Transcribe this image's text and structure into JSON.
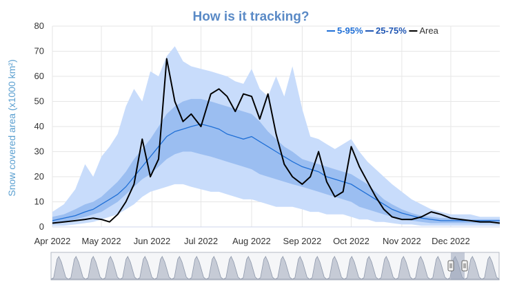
{
  "chart_data": {
    "type": "area",
    "title": "How is it tracking?",
    "ylabel": "Snow covered area (x1000 km²)",
    "xlabel": "",
    "ylim": [
      0,
      80
    ],
    "yticks": [
      0,
      10,
      20,
      30,
      40,
      50,
      60,
      70,
      80
    ],
    "xlim_days": [
      0,
      274
    ],
    "x_ticks": [
      {
        "label": "Apr 2022",
        "day": 0
      },
      {
        "label": "May 2022",
        "day": 30
      },
      {
        "label": "Jun 2022",
        "day": 61
      },
      {
        "label": "Jul 2022",
        "day": 91
      },
      {
        "label": "Aug 2022",
        "day": 122
      },
      {
        "label": "Sep 2022",
        "day": 153
      },
      {
        "label": "Oct 2022",
        "day": 183
      },
      {
        "label": "Nov 2022",
        "day": 214
      },
      {
        "label": "Dec 2022",
        "day": 244
      }
    ],
    "grid": true,
    "legend_position": "top-right",
    "legend": [
      {
        "label": "5-95%",
        "color": "#1f6fd6"
      },
      {
        "label": "25-75%",
        "color": "#1f56b3"
      },
      {
        "label": "Area",
        "color": "#000000"
      }
    ],
    "colors": {
      "band_5_95": "#c8dcfb",
      "band_25_75": "#93b8ef",
      "median": "#1f6fd6",
      "area": "#000000",
      "navigator_fill": "#c6cbd6",
      "navigator_line": "#8e98ab"
    },
    "x_days": [
      0,
      7,
      14,
      20,
      25,
      30,
      35,
      40,
      45,
      50,
      55,
      60,
      65,
      70,
      75,
      80,
      85,
      91,
      97,
      102,
      107,
      112,
      117,
      122,
      127,
      132,
      137,
      142,
      147,
      153,
      158,
      163,
      168,
      173,
      178,
      183,
      188,
      193,
      198,
      203,
      208,
      214,
      220,
      226,
      232,
      238,
      244,
      250,
      256,
      262,
      268,
      274
    ],
    "series": [
      {
        "name": "5-95%",
        "role": "band_outer",
        "lower": [
          0.5,
          0.5,
          1,
          1.5,
          2,
          3,
          4,
          5,
          7,
          9,
          12,
          14,
          15,
          16,
          17,
          17,
          16,
          15,
          14,
          14,
          13,
          12,
          11,
          11,
          10,
          9,
          8,
          8,
          8,
          7,
          6,
          6,
          5,
          5,
          5,
          4,
          3,
          3,
          2,
          2,
          1.5,
          1,
          1,
          0.5,
          0.5,
          0.5,
          0.5,
          0.5,
          0.5,
          0.5,
          0.5,
          0.5
        ],
        "upper": [
          6,
          9,
          15,
          25,
          20,
          28,
          32,
          37,
          48,
          55,
          50,
          62,
          60,
          68,
          72,
          66,
          64,
          63,
          62,
          61,
          60,
          58,
          57,
          63,
          55,
          52,
          60,
          52,
          64,
          47,
          36,
          35,
          33,
          31,
          33,
          35,
          30,
          26,
          23,
          20,
          17,
          14,
          11,
          9,
          7,
          6,
          5,
          5,
          5,
          4,
          4,
          4
        ]
      },
      {
        "name": "25-75%",
        "role": "band_inner",
        "lower": [
          1.5,
          2,
          3,
          4,
          5,
          6,
          8,
          10,
          13,
          16,
          19,
          21,
          24,
          27,
          29,
          30,
          30,
          29,
          28,
          27,
          26,
          25,
          24,
          23,
          21,
          20,
          19,
          18,
          17,
          16,
          15,
          14,
          13,
          12,
          11,
          10,
          8,
          7,
          6,
          5,
          4,
          3,
          2.5,
          2,
          1.5,
          1.5,
          1.5,
          1.5,
          1.5,
          1.5,
          1.5,
          1.5
        ],
        "upper": [
          4,
          5,
          7,
          9,
          10,
          12,
          15,
          18,
          22,
          27,
          31,
          35,
          40,
          45,
          48,
          50,
          51,
          51,
          50,
          49,
          48,
          47,
          46,
          45,
          42,
          38,
          35,
          32,
          30,
          27,
          26,
          25,
          24,
          23,
          22,
          21,
          19,
          17,
          14,
          11,
          9,
          7,
          5.5,
          4.5,
          4,
          3.5,
          3.5,
          3,
          3,
          3,
          3,
          3
        ]
      },
      {
        "name": "Median",
        "role": "median",
        "values": [
          2.5,
          3.5,
          4.5,
          6,
          7,
          9,
          11,
          13,
          16,
          20,
          24,
          28,
          32,
          36,
          38,
          39,
          40,
          41,
          40,
          39,
          37,
          36,
          35,
          36,
          34,
          32,
          30,
          28,
          26,
          24,
          23,
          22,
          20,
          19,
          18,
          17,
          15,
          13,
          11,
          9,
          7,
          5.5,
          4.5,
          3.5,
          3,
          2.5,
          2.5,
          2.5,
          2.5,
          2.5,
          2.5,
          2.5
        ]
      },
      {
        "name": "Area",
        "role": "area",
        "values": [
          1.5,
          2,
          2.5,
          3,
          3.5,
          3,
          2,
          5,
          10,
          17,
          35,
          20,
          27,
          67,
          50,
          42,
          45,
          40,
          53,
          55,
          52,
          46,
          53,
          52,
          43,
          53,
          37,
          25,
          20,
          17,
          20,
          30,
          18,
          12,
          14,
          32,
          24,
          18,
          12,
          7,
          4,
          3,
          3,
          4,
          6,
          5,
          3.5,
          3,
          2.5,
          2,
          2,
          1.5
        ]
      }
    ]
  },
  "navigator": {
    "handle_left_icon": "grip-handle-icon",
    "handle_right_icon": "grip-handle-icon"
  }
}
